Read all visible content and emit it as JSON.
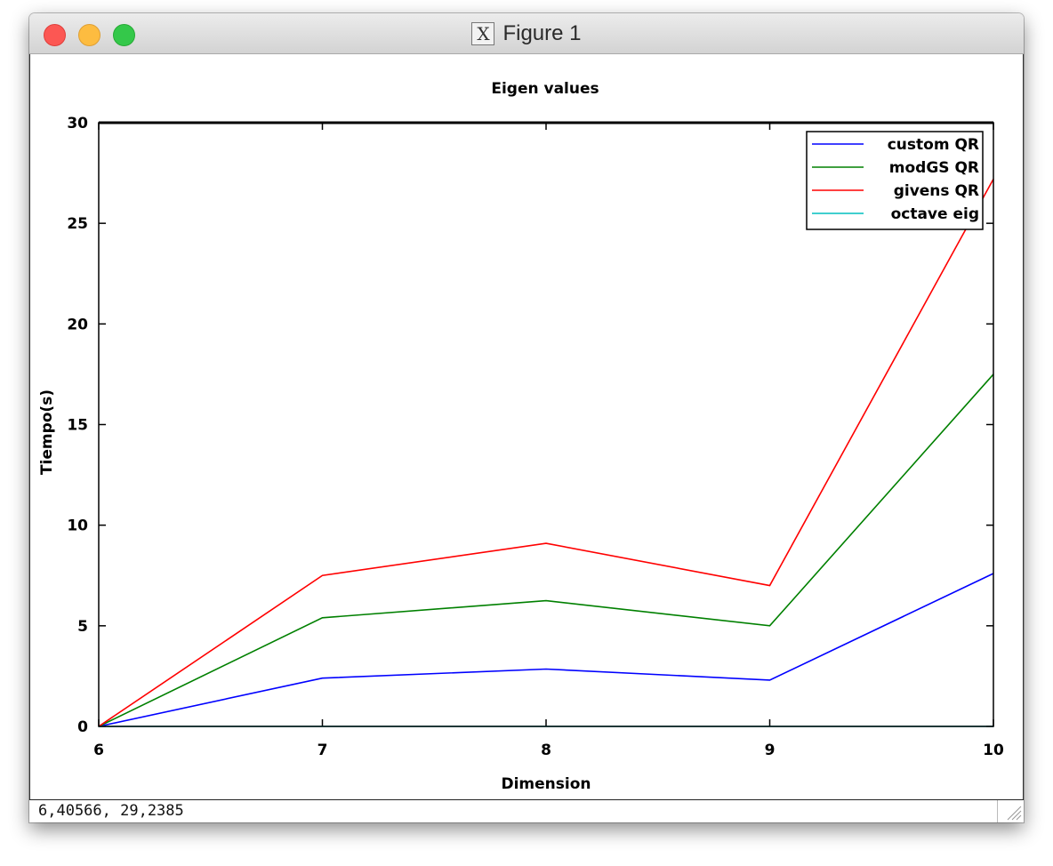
{
  "window": {
    "title": "Figure 1",
    "buttons": {
      "close": "close-icon",
      "minimize": "minimize-icon",
      "zoom": "zoom-icon"
    }
  },
  "status": {
    "coordinates": "6,40566,  29,2385"
  },
  "colors": {
    "custom_qr": "#0000ff",
    "modgs_qr": "#008000",
    "givens_qr": "#ff0000",
    "octave_eig": "#00bfbf"
  },
  "chart_data": {
    "type": "line",
    "title": "Eigen values",
    "xlabel": "Dimension",
    "ylabel": "Tiempo(s)",
    "x": [
      6,
      7,
      8,
      9,
      10
    ],
    "xlim": [
      6,
      10
    ],
    "ylim": [
      0,
      30
    ],
    "xticks": [
      "6",
      "7",
      "8",
      "9",
      "10"
    ],
    "yticks": [
      "0",
      "5",
      "10",
      "15",
      "20",
      "25",
      "30"
    ],
    "grid": false,
    "legend_position": "top-right",
    "series": [
      {
        "name": "custom QR",
        "color": "#0000ff",
        "values": [
          0.0,
          2.4,
          2.85,
          2.3,
          7.6
        ]
      },
      {
        "name": "modGS QR",
        "color": "#008000",
        "values": [
          0.0,
          5.4,
          6.25,
          5.0,
          17.5
        ]
      },
      {
        "name": "givens QR",
        "color": "#ff0000",
        "values": [
          0.0,
          7.5,
          9.1,
          7.0,
          27.2
        ]
      },
      {
        "name": "octave eig",
        "color": "#00bfbf",
        "values": [
          0.0,
          0.0,
          0.0,
          0.0,
          0.0
        ]
      }
    ]
  }
}
